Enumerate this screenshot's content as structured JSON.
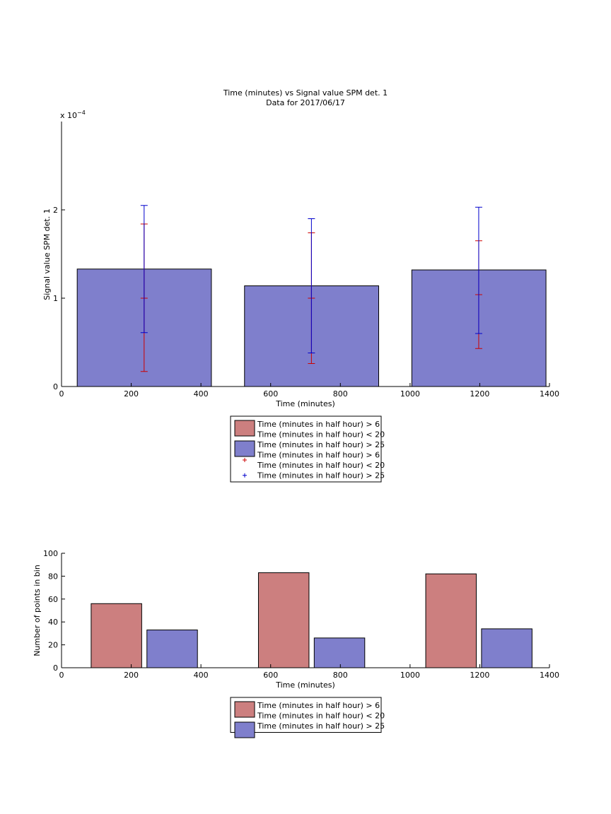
{
  "chart_data": [
    {
      "type": "bar",
      "title": "Time (minutes) vs Signal value SPM det. 1",
      "subtitle": "Data for 2017/06/17",
      "xlabel": "Time (minutes)",
      "ylabel": "Signal value SPM det. 1",
      "y_exponent_label": "x 10",
      "y_exponent_power": "−4",
      "xlim": [
        0,
        1400
      ],
      "ylim": [
        0,
        3.0
      ],
      "xticks": [
        "0",
        "200",
        "400",
        "600",
        "800",
        "1000",
        "1200",
        "1400"
      ],
      "yticks": [
        "0",
        "1",
        "2"
      ],
      "grid": false,
      "bars": [
        {
          "x0": 45,
          "x1": 430,
          "value": 1.33
        },
        {
          "x0": 525,
          "x1": 910,
          "value": 1.14
        },
        {
          "x0": 1005,
          "x1": 1390,
          "value": 1.32
        }
      ],
      "series": [
        {
          "name": "Time (minutes in half hour) > 6 / Time (minutes in half hour) < 20",
          "color": "#cc0000",
          "x": [
            237,
            717,
            1197
          ],
          "center": [
            1.0,
            1.0,
            1.04
          ],
          "low": [
            0.17,
            0.26,
            0.43
          ],
          "high": [
            1.84,
            1.74,
            1.65
          ]
        },
        {
          "name": "Time (minutes in half hour) > 25",
          "color": "#0000cc",
          "x": [
            237,
            717,
            1197
          ],
          "low": [
            0.61,
            0.38,
            0.6
          ],
          "high": [
            2.05,
            1.9,
            2.03
          ]
        }
      ],
      "legend": {
        "placement": "below",
        "entries": [
          {
            "kind": "patch",
            "color": "#cc7f7f",
            "lines": [
              "Time (minutes in half hour) > 6",
              "Time (minutes in half hour) < 20"
            ]
          },
          {
            "kind": "patch",
            "color": "#7f7fcc",
            "lines": [
              "Time (minutes in half hour) > 25"
            ]
          },
          {
            "kind": "marker",
            "color": "#cc0000",
            "lines": [
              "Time (minutes in half hour) > 6",
              "Time (minutes in half hour) < 20"
            ]
          },
          {
            "kind": "marker",
            "color": "#0000cc",
            "lines": [
              "Time (minutes in half hour) > 25"
            ]
          }
        ]
      }
    },
    {
      "type": "bar",
      "xlabel": "Time (minutes)",
      "ylabel": "Number of points in bin",
      "xlim": [
        0,
        1400
      ],
      "ylim": [
        0,
        100
      ],
      "xticks": [
        "0",
        "200",
        "400",
        "600",
        "800",
        "1000",
        "1200",
        "1400"
      ],
      "yticks": [
        "0",
        "20",
        "40",
        "60",
        "80",
        "100"
      ],
      "grid": false,
      "series": [
        {
          "name": "Time (minutes in half hour) > 6 / Time (minutes in half hour) < 20",
          "color": "#cc7f7f",
          "bars": [
            {
              "x0": 85,
              "x1": 230,
              "value": 56
            },
            {
              "x0": 565,
              "x1": 710,
              "value": 83
            },
            {
              "x0": 1045,
              "x1": 1190,
              "value": 82
            }
          ]
        },
        {
          "name": "Time (minutes in half hour) > 25",
          "color": "#7f7fcc",
          "bars": [
            {
              "x0": 245,
              "x1": 390,
              "value": 33
            },
            {
              "x0": 725,
              "x1": 870,
              "value": 26
            },
            {
              "x0": 1205,
              "x1": 1350,
              "value": 34
            }
          ]
        }
      ],
      "legend": {
        "placement": "below",
        "entries": [
          {
            "kind": "patch",
            "color": "#cc7f7f",
            "lines": [
              "Time (minutes in half hour) > 6",
              "Time (minutes in half hour) < 20"
            ]
          },
          {
            "kind": "patch",
            "color": "#7f7fcc",
            "lines": [
              "Time (minutes in half hour) > 25"
            ]
          }
        ]
      }
    }
  ]
}
